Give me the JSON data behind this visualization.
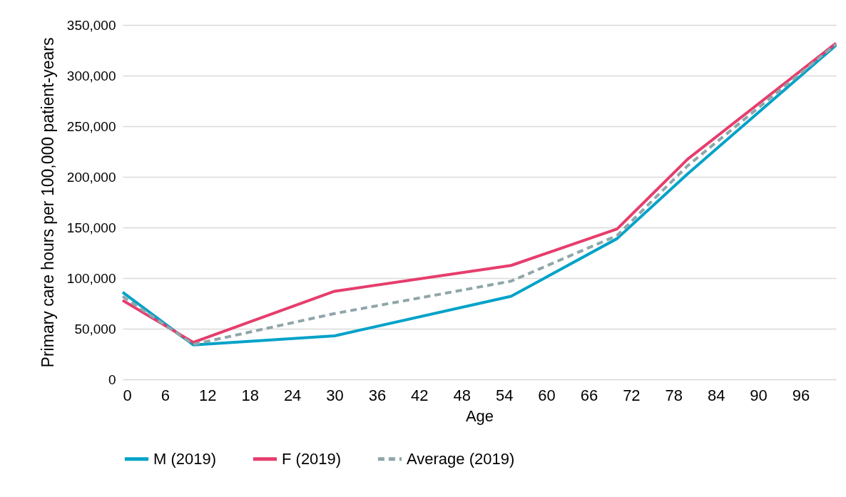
{
  "chart_data": {
    "type": "line",
    "xlabel": "Age",
    "ylabel": "Primary care hours per 100,000 patient-years",
    "x": [
      0,
      10,
      30,
      55,
      70,
      80,
      101
    ],
    "series": [
      {
        "name": "M (2019)",
        "color": "#00a2c8",
        "line_style": "solid",
        "values": [
          86000,
          34000,
          43000,
          82000,
          139000,
          203000,
          330000
        ]
      },
      {
        "name": "F (2019)",
        "color": "#e63d6d",
        "line_style": "solid",
        "values": [
          78000,
          36500,
          87000,
          112500,
          148500,
          217500,
          332000
        ]
      },
      {
        "name": "Average (2019)",
        "color": "#8fa6aa",
        "line_style": "dashed",
        "values": [
          82000,
          34500,
          65000,
          97000,
          142000,
          211000,
          331000
        ]
      }
    ],
    "xlim": [
      0,
      101
    ],
    "xticks": [
      0,
      6,
      12,
      18,
      24,
      30,
      36,
      42,
      48,
      54,
      60,
      66,
      72,
      78,
      84,
      90,
      96
    ],
    "ylim": [
      0,
      350000
    ],
    "yticks": [
      0,
      {
        "value": 50000,
        "label": "50,000"
      },
      {
        "value": 100000,
        "label": "100,000"
      },
      {
        "value": 150000,
        "label": "150,000"
      },
      {
        "value": 200000,
        "label": "200,000"
      },
      {
        "value": 250000,
        "label": "250,000"
      },
      {
        "value": 300000,
        "label": "300,000"
      },
      {
        "value": 350000,
        "label": "350,000"
      }
    ],
    "grid": "y",
    "legend": "bottom",
    "marker": "none"
  }
}
